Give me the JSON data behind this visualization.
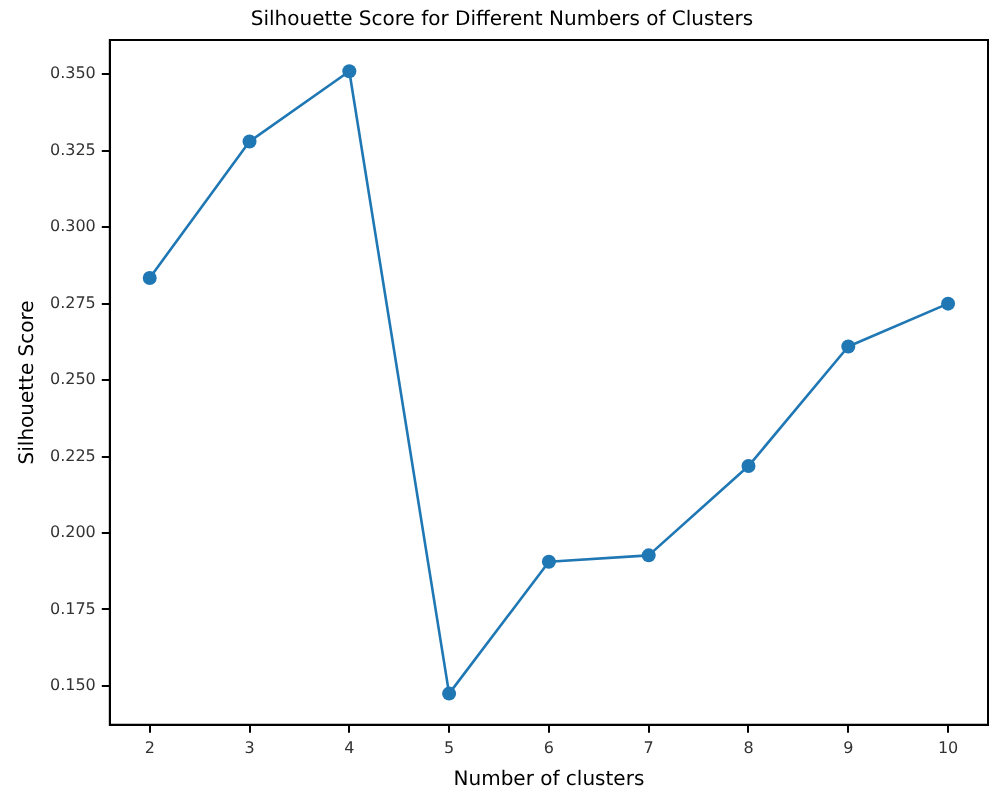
{
  "chart_data": {
    "type": "line",
    "title": "Silhouette Score for Different Numbers of Clusters",
    "xlabel": "Number of clusters",
    "ylabel": "Silhouette Score",
    "x": [
      2,
      3,
      4,
      5,
      6,
      7,
      8,
      9,
      10
    ],
    "series": [
      {
        "color": "#1f77b4",
        "values": [
          0.2834,
          0.328,
          0.351,
          0.1475,
          0.1906,
          0.1927,
          0.2219,
          0.261,
          0.275
        ]
      }
    ],
    "xlim": [
      1.6,
      10.4
    ],
    "xticks": [
      2,
      3,
      4,
      5,
      6,
      7,
      8,
      9,
      10
    ],
    "ylim": [
      0.1373,
      0.3612
    ],
    "yticks": [
      {
        "value": 0.15,
        "label": "0.150"
      },
      {
        "value": 0.175,
        "label": "0.175"
      },
      {
        "value": 0.2,
        "label": "0.200"
      },
      {
        "value": 0.225,
        "label": "0.225"
      },
      {
        "value": 0.25,
        "label": "0.250"
      },
      {
        "value": 0.275,
        "label": "0.275"
      },
      {
        "value": 0.3,
        "label": "0.300"
      },
      {
        "value": 0.325,
        "label": "0.325"
      },
      {
        "value": 0.35,
        "label": "0.350"
      }
    ],
    "marker": "circle",
    "grid": false
  }
}
